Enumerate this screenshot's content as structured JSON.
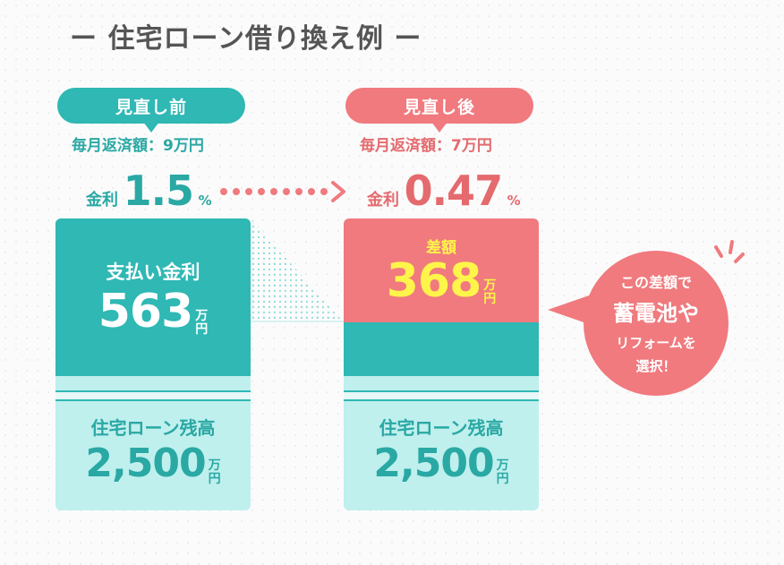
{
  "title": "ー 住宅ローン借り換え例 ー",
  "colors": {
    "teal": "#2fb8b4",
    "pink": "#f07a7e",
    "light_teal": "#bff0ee",
    "yellow": "#fff54a"
  },
  "before": {
    "tag": "見直し前",
    "monthly": "毎月返済額：9万円",
    "rate_label": "金利",
    "rate_value": "1.5",
    "rate_unit": "%",
    "interest_label": "支払い金利",
    "interest_value": "563",
    "unit_top": "万",
    "unit_bottom": "円",
    "balance_label": "住宅ローン残高",
    "balance_value": "2,500"
  },
  "after": {
    "tag": "見直し後",
    "monthly": "毎月返済額：7万円",
    "rate_label": "金利",
    "rate_value": "0.47",
    "rate_unit": "%",
    "diff_label": "差額",
    "diff_value": "368",
    "unit_top": "万",
    "unit_bottom": "円",
    "balance_label": "住宅ローン残高",
    "balance_value": "2,500"
  },
  "bubble": {
    "line1": "この差額で",
    "line2": "蓄電池や",
    "line3": "リフォームを",
    "line4": "選択！"
  }
}
